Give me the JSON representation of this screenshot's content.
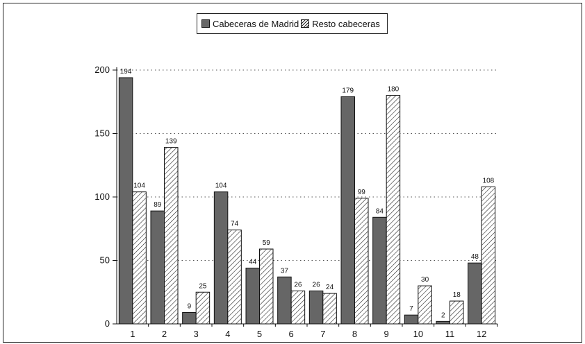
{
  "chart_data": {
    "type": "bar",
    "categories": [
      "1",
      "2",
      "3",
      "4",
      "5",
      "6",
      "7",
      "8",
      "9",
      "10",
      "11",
      "12"
    ],
    "series": [
      {
        "name": "Cabeceras de Madrid",
        "values": [
          194,
          89,
          9,
          104,
          44,
          37,
          26,
          179,
          84,
          7,
          2,
          48
        ],
        "labels": [
          "194",
          "89",
          "9",
          "104",
          "44",
          "37",
          "26",
          "179",
          "84",
          "7",
          "2",
          "48"
        ],
        "color": "#666666"
      },
      {
        "name": "Resto cabeceras",
        "values": [
          104,
          139,
          25,
          74,
          59,
          26,
          24,
          99,
          180,
          30,
          18,
          108
        ],
        "labels": [
          "104",
          "139",
          "25",
          "74",
          "59",
          "26",
          "24",
          "99",
          "180",
          "30",
          "18",
          "108"
        ],
        "color": "#ffffff"
      }
    ],
    "yticks": [
      0,
      50,
      100,
      150,
      200
    ],
    "ytick_labels": [
      "0",
      "50",
      "100",
      "150",
      "200"
    ],
    "ylim": [
      0,
      200
    ],
    "grid": true,
    "legend_position": "top-center"
  }
}
